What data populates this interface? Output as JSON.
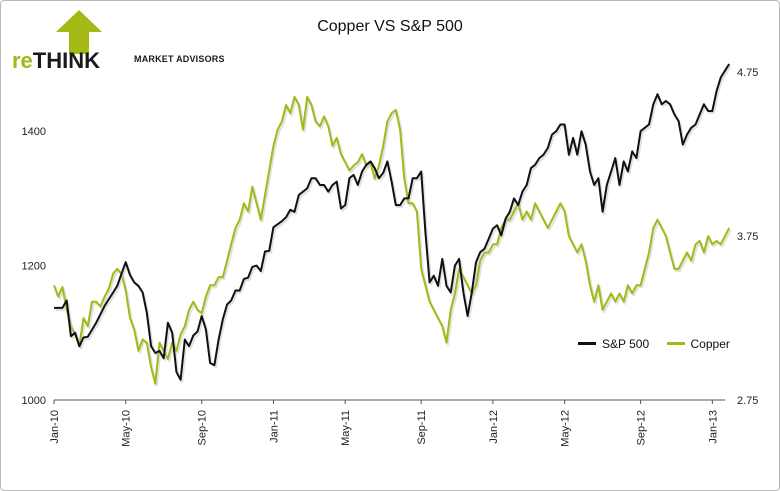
{
  "logo": {
    "re": "re",
    "think": "THINK",
    "subtitle": "MARKET ADVISORS",
    "accent_color": "#a4b816"
  },
  "chart_data": {
    "type": "line",
    "title": "Copper VS S&P 500",
    "xlabel": "",
    "ylabel": "",
    "x_tick_labels": [
      "Jan-10",
      "May-10",
      "Sep-10",
      "Jan-11",
      "May-11",
      "Sep-11",
      "Jan-12",
      "May-12",
      "Sep-12",
      "Jan-13"
    ],
    "x_range": [
      0,
      159
    ],
    "x_ticks": [
      0,
      17,
      35,
      52,
      69,
      87,
      104,
      121,
      139,
      156
    ],
    "ylim_left": [
      1000,
      1500
    ],
    "ylim_right": [
      2.75,
      4.8
    ],
    "left_ticks": [
      1000,
      1200,
      1400
    ],
    "right_ticks": [
      2.75,
      3.75,
      4.75
    ],
    "legend_position": "bottom-right",
    "series": [
      {
        "name": "S&P 500",
        "color": "#111111",
        "axis": "left",
        "points": [
          [
            0,
            1137
          ],
          [
            2,
            1137
          ],
          [
            3,
            1148
          ],
          [
            4,
            1095
          ],
          [
            5,
            1100
          ],
          [
            6,
            1080
          ],
          [
            7,
            1093
          ],
          [
            8,
            1094
          ],
          [
            10,
            1115
          ],
          [
            12,
            1140
          ],
          [
            14,
            1160
          ],
          [
            15,
            1170
          ],
          [
            16,
            1188
          ],
          [
            17,
            1205
          ],
          [
            18,
            1186
          ],
          [
            19,
            1175
          ],
          [
            20,
            1170
          ],
          [
            21,
            1160
          ],
          [
            22,
            1130
          ],
          [
            23,
            1080
          ],
          [
            24,
            1070
          ],
          [
            25,
            1073
          ],
          [
            26,
            1062
          ],
          [
            27,
            1115
          ],
          [
            28,
            1100
          ],
          [
            29,
            1042
          ],
          [
            30,
            1030
          ],
          [
            31,
            1090
          ],
          [
            32,
            1080
          ],
          [
            33,
            1096
          ],
          [
            34,
            1102
          ],
          [
            35,
            1125
          ],
          [
            36,
            1105
          ],
          [
            37,
            1055
          ],
          [
            38,
            1052
          ],
          [
            39,
            1090
          ],
          [
            40,
            1120
          ],
          [
            41,
            1142
          ],
          [
            42,
            1148
          ],
          [
            43,
            1163
          ],
          [
            44,
            1163
          ],
          [
            45,
            1180
          ],
          [
            46,
            1182
          ],
          [
            47,
            1198
          ],
          [
            48,
            1200
          ],
          [
            49,
            1192
          ],
          [
            50,
            1221
          ],
          [
            51,
            1222
          ],
          [
            52,
            1257
          ],
          [
            54,
            1266
          ],
          [
            55,
            1272
          ],
          [
            56,
            1283
          ],
          [
            57,
            1280
          ],
          [
            58,
            1305
          ],
          [
            60,
            1315
          ],
          [
            61,
            1330
          ],
          [
            62,
            1330
          ],
          [
            63,
            1320
          ],
          [
            64,
            1320
          ],
          [
            65,
            1310
          ],
          [
            66,
            1320
          ],
          [
            67,
            1325
          ],
          [
            68,
            1285
          ],
          [
            69,
            1290
          ],
          [
            70,
            1330
          ],
          [
            71,
            1335
          ],
          [
            72,
            1320
          ],
          [
            73,
            1340
          ],
          [
            74,
            1350
          ],
          [
            75,
            1355
          ],
          [
            76,
            1345
          ],
          [
            77,
            1330
          ],
          [
            78,
            1338
          ],
          [
            79,
            1355
          ],
          [
            80,
            1325
          ],
          [
            81,
            1290
          ],
          [
            82,
            1290
          ],
          [
            83,
            1300
          ],
          [
            84,
            1300
          ],
          [
            85,
            1330
          ],
          [
            86,
            1330
          ],
          [
            87,
            1340
          ],
          [
            88,
            1250
          ],
          [
            89,
            1175
          ],
          [
            90,
            1185
          ],
          [
            91,
            1170
          ],
          [
            92,
            1210
          ],
          [
            93,
            1170
          ],
          [
            94,
            1160
          ],
          [
            95,
            1200
          ],
          [
            96,
            1210
          ],
          [
            97,
            1160
          ],
          [
            98,
            1125
          ],
          [
            99,
            1160
          ],
          [
            100,
            1205
          ],
          [
            101,
            1220
          ],
          [
            102,
            1225
          ],
          [
            103,
            1240
          ],
          [
            104,
            1255
          ],
          [
            105,
            1260
          ],
          [
            106,
            1245
          ],
          [
            107,
            1270
          ],
          [
            108,
            1280
          ],
          [
            109,
            1300
          ],
          [
            110,
            1290
          ],
          [
            111,
            1310
          ],
          [
            112,
            1320
          ],
          [
            113,
            1345
          ],
          [
            114,
            1350
          ],
          [
            115,
            1360
          ],
          [
            116,
            1365
          ],
          [
            117,
            1375
          ],
          [
            118,
            1395
          ],
          [
            119,
            1400
          ],
          [
            120,
            1410
          ],
          [
            121,
            1410
          ],
          [
            122,
            1365
          ],
          [
            123,
            1390
          ],
          [
            124,
            1365
          ],
          [
            125,
            1400
          ],
          [
            126,
            1380
          ],
          [
            127,
            1340
          ],
          [
            128,
            1320
          ],
          [
            129,
            1330
          ],
          [
            130,
            1280
          ],
          [
            131,
            1320
          ],
          [
            132,
            1340
          ],
          [
            133,
            1360
          ],
          [
            134,
            1320
          ],
          [
            135,
            1355
          ],
          [
            136,
            1340
          ],
          [
            137,
            1370
          ],
          [
            138,
            1360
          ],
          [
            139,
            1400
          ],
          [
            140,
            1405
          ],
          [
            141,
            1410
          ],
          [
            142,
            1440
          ],
          [
            143,
            1455
          ],
          [
            144,
            1440
          ],
          [
            145,
            1445
          ],
          [
            146,
            1440
          ],
          [
            147,
            1425
          ],
          [
            148,
            1415
          ],
          [
            149,
            1380
          ],
          [
            150,
            1395
          ],
          [
            151,
            1405
          ],
          [
            152,
            1410
          ],
          [
            153,
            1425
          ],
          [
            154,
            1440
          ],
          [
            155,
            1430
          ],
          [
            156,
            1430
          ],
          [
            157,
            1460
          ],
          [
            158,
            1480
          ],
          [
            159,
            1490
          ],
          [
            160,
            1500
          ]
        ]
      },
      {
        "name": "Copper",
        "color": "#a4b816",
        "axis": "right",
        "points": [
          [
            0,
            3.45
          ],
          [
            1,
            3.38
          ],
          [
            2,
            3.44
          ],
          [
            3,
            3.3
          ],
          [
            4,
            3.2
          ],
          [
            5,
            3.15
          ],
          [
            6,
            3.08
          ],
          [
            7,
            3.25
          ],
          [
            8,
            3.2
          ],
          [
            9,
            3.35
          ],
          [
            10,
            3.35
          ],
          [
            11,
            3.32
          ],
          [
            12,
            3.38
          ],
          [
            13,
            3.43
          ],
          [
            14,
            3.52
          ],
          [
            15,
            3.55
          ],
          [
            16,
            3.52
          ],
          [
            17,
            3.42
          ],
          [
            18,
            3.25
          ],
          [
            19,
            3.18
          ],
          [
            20,
            3.05
          ],
          [
            21,
            3.12
          ],
          [
            22,
            3.1
          ],
          [
            23,
            2.95
          ],
          [
            24,
            2.85
          ],
          [
            25,
            3.1
          ],
          [
            26,
            3.05
          ],
          [
            27,
            3.0
          ],
          [
            28,
            3.1
          ],
          [
            29,
            3.05
          ],
          [
            30,
            3.15
          ],
          [
            31,
            3.2
          ],
          [
            32,
            3.3
          ],
          [
            33,
            3.35
          ],
          [
            34,
            3.3
          ],
          [
            35,
            3.28
          ],
          [
            36,
            3.38
          ],
          [
            37,
            3.45
          ],
          [
            38,
            3.45
          ],
          [
            39,
            3.5
          ],
          [
            40,
            3.5
          ],
          [
            41,
            3.6
          ],
          [
            42,
            3.7
          ],
          [
            43,
            3.8
          ],
          [
            44,
            3.85
          ],
          [
            45,
            3.95
          ],
          [
            46,
            3.9
          ],
          [
            47,
            4.05
          ],
          [
            48,
            3.95
          ],
          [
            49,
            3.85
          ],
          [
            50,
            4.0
          ],
          [
            51,
            4.15
          ],
          [
            52,
            4.3
          ],
          [
            53,
            4.4
          ],
          [
            54,
            4.45
          ],
          [
            55,
            4.55
          ],
          [
            56,
            4.5
          ],
          [
            57,
            4.6
          ],
          [
            58,
            4.55
          ],
          [
            59,
            4.4
          ],
          [
            60,
            4.6
          ],
          [
            61,
            4.55
          ],
          [
            62,
            4.45
          ],
          [
            63,
            4.42
          ],
          [
            64,
            4.48
          ],
          [
            65,
            4.42
          ],
          [
            66,
            4.3
          ],
          [
            67,
            4.35
          ],
          [
            68,
            4.25
          ],
          [
            69,
            4.2
          ],
          [
            70,
            4.15
          ],
          [
            71,
            4.18
          ],
          [
            72,
            4.2
          ],
          [
            73,
            4.25
          ],
          [
            74,
            4.18
          ],
          [
            75,
            4.2
          ],
          [
            76,
            4.1
          ],
          [
            77,
            4.18
          ],
          [
            78,
            4.3
          ],
          [
            79,
            4.45
          ],
          [
            80,
            4.5
          ],
          [
            81,
            4.52
          ],
          [
            82,
            4.4
          ],
          [
            83,
            4.1
          ],
          [
            84,
            3.95
          ],
          [
            85,
            3.95
          ],
          [
            86,
            3.9
          ],
          [
            87,
            3.55
          ],
          [
            88,
            3.45
          ],
          [
            89,
            3.35
          ],
          [
            90,
            3.3
          ],
          [
            91,
            3.25
          ],
          [
            92,
            3.2
          ],
          [
            93,
            3.1
          ],
          [
            94,
            3.3
          ],
          [
            95,
            3.4
          ],
          [
            96,
            3.55
          ],
          [
            97,
            3.5
          ],
          [
            98,
            3.45
          ],
          [
            99,
            3.4
          ],
          [
            100,
            3.45
          ],
          [
            101,
            3.6
          ],
          [
            102,
            3.65
          ],
          [
            103,
            3.65
          ],
          [
            104,
            3.7
          ],
          [
            105,
            3.7
          ],
          [
            106,
            3.8
          ],
          [
            107,
            3.85
          ],
          [
            108,
            3.85
          ],
          [
            109,
            3.9
          ],
          [
            110,
            3.95
          ],
          [
            111,
            3.85
          ],
          [
            112,
            3.9
          ],
          [
            113,
            3.85
          ],
          [
            114,
            3.95
          ],
          [
            115,
            3.9
          ],
          [
            116,
            3.85
          ],
          [
            117,
            3.8
          ],
          [
            118,
            3.85
          ],
          [
            119,
            3.9
          ],
          [
            120,
            3.95
          ],
          [
            121,
            3.9
          ],
          [
            122,
            3.75
          ],
          [
            123,
            3.7
          ],
          [
            124,
            3.65
          ],
          [
            125,
            3.7
          ],
          [
            126,
            3.6
          ],
          [
            127,
            3.45
          ],
          [
            128,
            3.35
          ],
          [
            129,
            3.45
          ],
          [
            130,
            3.3
          ],
          [
            131,
            3.35
          ],
          [
            132,
            3.4
          ],
          [
            133,
            3.35
          ],
          [
            134,
            3.4
          ],
          [
            135,
            3.35
          ],
          [
            136,
            3.45
          ],
          [
            137,
            3.4
          ],
          [
            138,
            3.45
          ],
          [
            139,
            3.45
          ],
          [
            140,
            3.55
          ],
          [
            141,
            3.65
          ],
          [
            142,
            3.8
          ],
          [
            143,
            3.85
          ],
          [
            144,
            3.8
          ],
          [
            145,
            3.75
          ],
          [
            146,
            3.65
          ],
          [
            147,
            3.55
          ],
          [
            148,
            3.55
          ],
          [
            149,
            3.6
          ],
          [
            150,
            3.65
          ],
          [
            151,
            3.6
          ],
          [
            152,
            3.7
          ],
          [
            153,
            3.72
          ],
          [
            154,
            3.65
          ],
          [
            155,
            3.75
          ],
          [
            156,
            3.7
          ],
          [
            157,
            3.72
          ],
          [
            158,
            3.7
          ],
          [
            159,
            3.75
          ],
          [
            160,
            3.8
          ]
        ]
      }
    ]
  }
}
